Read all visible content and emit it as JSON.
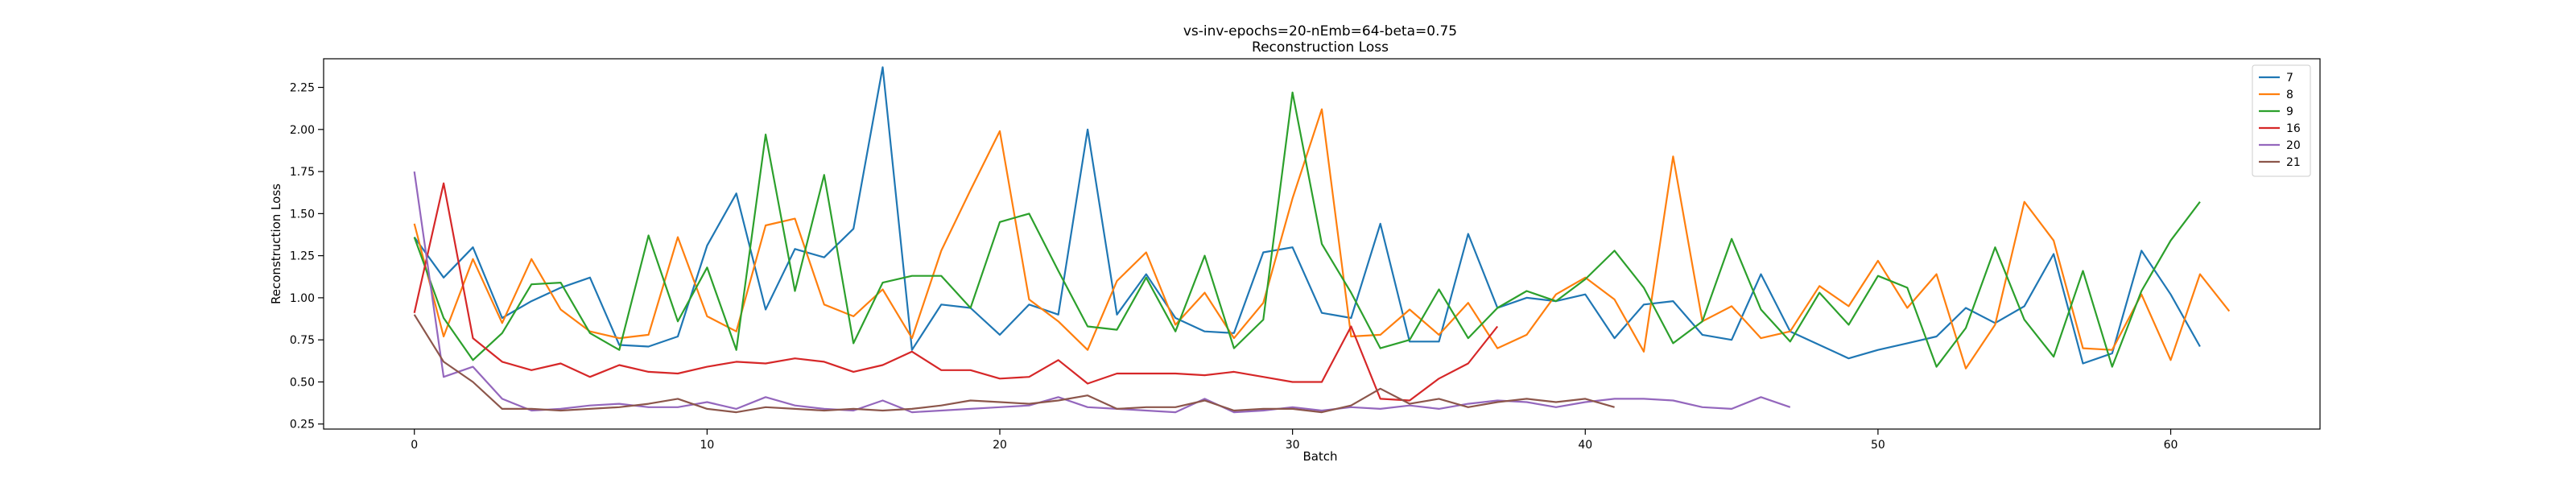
{
  "chart_data": {
    "type": "line",
    "title": "vs-inv-epochs=20-nEmb=64-beta=0.75",
    "subtitle": "Reconstruction Loss",
    "xlabel": "Batch",
    "ylabel": "Reconstruction Loss",
    "xlim": [
      -3.1,
      65.1
    ],
    "ylim": [
      0.22,
      2.42
    ],
    "xticks": [
      0,
      10,
      20,
      30,
      40,
      50,
      60
    ],
    "yticks": [
      0.25,
      0.5,
      0.75,
      1.0,
      1.25,
      1.5,
      1.75,
      2.0,
      2.25
    ],
    "ytick_labels": [
      "0.25",
      "0.50",
      "0.75",
      "1.00",
      "1.25",
      "1.50",
      "1.75",
      "2.00",
      "2.25"
    ],
    "grid": false,
    "legend_position": "top-right",
    "series": [
      {
        "name": "7",
        "color": "#1f77b4",
        "values": [
          1.36,
          1.12,
          1.3,
          0.88,
          0.98,
          1.06,
          1.12,
          0.72,
          0.71,
          0.77,
          1.31,
          1.62,
          0.93,
          1.29,
          1.24,
          1.41,
          2.37,
          0.69,
          0.96,
          0.94,
          0.78,
          0.96,
          0.9,
          2.0,
          0.9,
          1.14,
          0.88,
          0.8,
          0.79,
          1.27,
          1.3,
          0.91,
          0.88,
          1.44,
          0.74,
          0.74,
          1.38,
          0.94,
          1.0,
          0.98,
          1.02,
          0.76,
          0.96,
          0.98,
          0.78,
          0.75,
          1.14,
          0.8,
          0.72,
          0.64,
          0.69,
          0.73,
          0.77,
          0.94,
          0.85,
          0.95,
          1.26,
          0.61,
          0.67,
          1.28,
          1.02,
          0.71
        ]
      },
      {
        "name": "8",
        "color": "#ff7f0e",
        "values": [
          1.44,
          0.77,
          1.23,
          0.85,
          1.23,
          0.93,
          0.8,
          0.76,
          0.78,
          1.36,
          0.89,
          0.8,
          1.43,
          1.47,
          0.96,
          0.89,
          1.05,
          0.76,
          1.28,
          1.64,
          1.99,
          0.99,
          0.86,
          0.69,
          1.1,
          1.27,
          0.84,
          1.03,
          0.76,
          0.97,
          1.59,
          2.12,
          0.77,
          0.78,
          0.93,
          0.78,
          0.97,
          0.7,
          0.78,
          1.02,
          1.12,
          0.99,
          0.68,
          1.84,
          0.86,
          0.95,
          0.76,
          0.8,
          1.07,
          0.95,
          1.22,
          0.94,
          1.14,
          0.58,
          0.84,
          1.57,
          1.34,
          0.7,
          0.69,
          1.02,
          0.63,
          1.14,
          0.92
        ]
      },
      {
        "name": "9",
        "color": "#2ca02c",
        "values": [
          1.36,
          0.88,
          0.63,
          0.79,
          1.08,
          1.09,
          0.79,
          0.69,
          1.37,
          0.86,
          1.18,
          0.69,
          1.97,
          1.04,
          1.73,
          0.73,
          1.09,
          1.13,
          1.13,
          0.94,
          1.45,
          1.5,
          1.16,
          0.83,
          0.81,
          1.12,
          0.8,
          1.25,
          0.7,
          0.87,
          2.22,
          1.32,
          1.03,
          0.7,
          0.75,
          1.05,
          0.76,
          0.94,
          1.04,
          0.98,
          1.11,
          1.28,
          1.06,
          0.73,
          0.86,
          1.35,
          0.93,
          0.74,
          1.03,
          0.84,
          1.13,
          1.06,
          0.59,
          0.82,
          1.3,
          0.87,
          0.65,
          1.16,
          0.59,
          1.04,
          1.34,
          1.57
        ]
      },
      {
        "name": "16",
        "color": "#d62728",
        "values": [
          0.91,
          1.68,
          0.76,
          0.62,
          0.57,
          0.61,
          0.53,
          0.6,
          0.56,
          0.55,
          0.59,
          0.62,
          0.61,
          0.64,
          0.62,
          0.56,
          0.6,
          0.68,
          0.57,
          0.57,
          0.52,
          0.53,
          0.63,
          0.49,
          0.55,
          0.55,
          0.55,
          0.54,
          0.56,
          0.53,
          0.5,
          0.5,
          0.83,
          0.4,
          0.39,
          0.52,
          0.61,
          0.83
        ]
      },
      {
        "name": "20",
        "color": "#9467bd",
        "values": [
          1.75,
          0.53,
          0.59,
          0.4,
          0.33,
          0.34,
          0.36,
          0.37,
          0.35,
          0.35,
          0.38,
          0.34,
          0.41,
          0.36,
          0.34,
          0.33,
          0.39,
          0.32,
          0.33,
          0.34,
          0.35,
          0.36,
          0.41,
          0.35,
          0.34,
          0.33,
          0.32,
          0.4,
          0.32,
          0.33,
          0.35,
          0.33,
          0.35,
          0.34,
          0.36,
          0.34,
          0.37,
          0.39,
          0.38,
          0.35,
          0.38,
          0.4,
          0.4,
          0.39,
          0.35,
          0.34,
          0.41,
          0.35
        ]
      },
      {
        "name": "21",
        "color": "#8c564b",
        "values": [
          0.9,
          0.62,
          0.5,
          0.34,
          0.34,
          0.33,
          0.34,
          0.35,
          0.37,
          0.4,
          0.34,
          0.32,
          0.35,
          0.34,
          0.33,
          0.34,
          0.33,
          0.34,
          0.36,
          0.39,
          0.38,
          0.37,
          0.39,
          0.42,
          0.34,
          0.35,
          0.35,
          0.39,
          0.33,
          0.34,
          0.34,
          0.32,
          0.36,
          0.46,
          0.37,
          0.4,
          0.35,
          0.38,
          0.4,
          0.38,
          0.4,
          0.35
        ]
      }
    ]
  }
}
